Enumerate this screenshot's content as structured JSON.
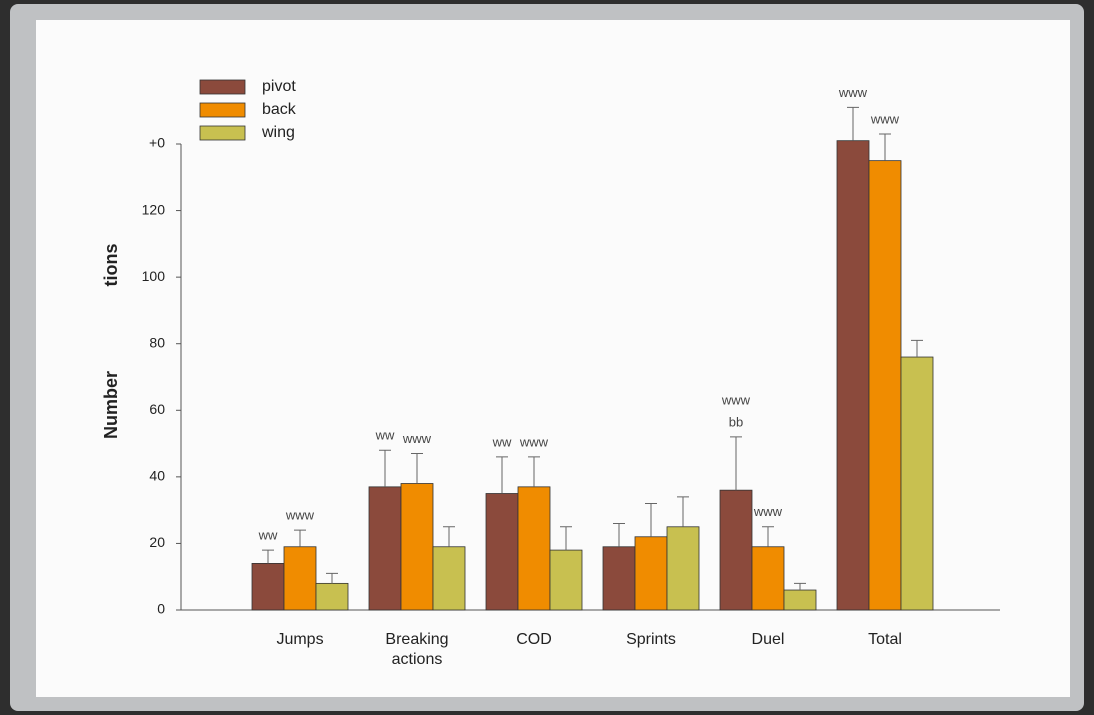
{
  "chart_data": {
    "type": "bar",
    "ylabel_parts": [
      "Number",
      "tions"
    ],
    "categories": [
      "Jumps",
      "Breaking actions",
      "COD",
      "Sprints",
      "Duel",
      "Total"
    ],
    "series": [
      {
        "name": "pivot",
        "color": "#8b4a3c",
        "values": [
          14,
          37,
          35,
          19,
          36,
          141
        ],
        "errors": [
          4,
          11,
          11,
          7,
          16,
          10
        ],
        "annotations": [
          "ww",
          "ww",
          "ww",
          null,
          [
            "www",
            "bb"
          ],
          "www"
        ]
      },
      {
        "name": "back",
        "color": "#f08c00",
        "values": [
          19,
          38,
          37,
          22,
          19,
          135
        ],
        "errors": [
          5,
          9,
          9,
          10,
          6,
          8
        ],
        "annotations": [
          "www",
          "www",
          "www",
          null,
          "www",
          "www"
        ]
      },
      {
        "name": "wing",
        "color": "#c8c050",
        "values": [
          8,
          19,
          18,
          25,
          6,
          76
        ],
        "errors": [
          3,
          6,
          7,
          9,
          2,
          5
        ]
      }
    ],
    "ylim": [
      0,
      140
    ],
    "yticks": [
      0,
      20,
      40,
      60,
      80,
      100,
      120,
      {
        "value": 140,
        "label": "+0"
      }
    ],
    "legend": "top-left"
  }
}
